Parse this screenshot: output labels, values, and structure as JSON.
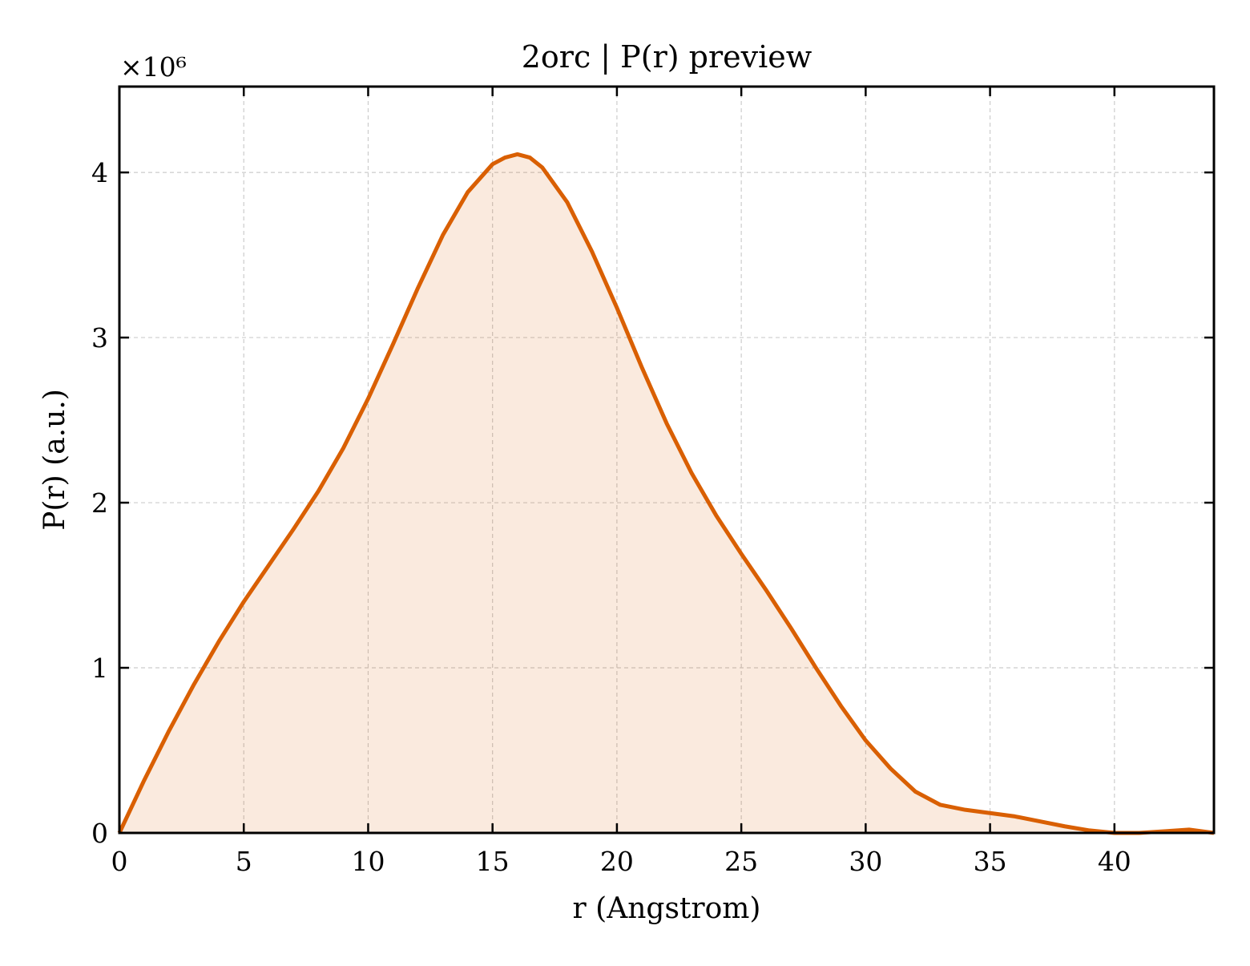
{
  "chart_data": {
    "type": "area",
    "title": "2orc | P(r) preview",
    "xlabel": "r (Angstrom)",
    "ylabel": "P(r) (a.u.)",
    "y_offset_label": "×10⁶",
    "xlim": [
      0,
      44
    ],
    "ylim": [
      0,
      4.52
    ],
    "y_scale_multiplier": 1000000,
    "grid": true,
    "x_ticks": [
      0,
      5,
      10,
      15,
      20,
      25,
      30,
      35,
      40
    ],
    "y_ticks": [
      0,
      1,
      2,
      3,
      4
    ],
    "series": [
      {
        "color": "#d95f02",
        "fill_color": "#d95f02",
        "x": [
          0,
          1,
          2,
          3,
          4,
          5,
          6,
          7,
          8,
          9,
          10,
          11,
          12,
          13,
          14,
          15,
          15.5,
          16,
          16.5,
          17,
          18,
          19,
          20,
          21,
          22,
          23,
          24,
          25,
          26,
          27,
          28,
          29,
          30,
          31,
          32,
          33,
          34,
          35,
          36,
          37,
          38,
          39,
          40,
          41,
          42,
          43,
          44
        ],
        "y": [
          0,
          0.32,
          0.62,
          0.9,
          1.16,
          1.4,
          1.62,
          1.84,
          2.07,
          2.33,
          2.63,
          2.96,
          3.3,
          3.62,
          3.88,
          4.05,
          4.09,
          4.11,
          4.09,
          4.03,
          3.82,
          3.52,
          3.18,
          2.82,
          2.48,
          2.18,
          1.92,
          1.69,
          1.47,
          1.24,
          1.0,
          0.77,
          0.56,
          0.39,
          0.25,
          0.17,
          0.14,
          0.12,
          0.1,
          0.07,
          0.04,
          0.015,
          0.0,
          0.0,
          0.01,
          0.02,
          0.0
        ]
      }
    ]
  }
}
